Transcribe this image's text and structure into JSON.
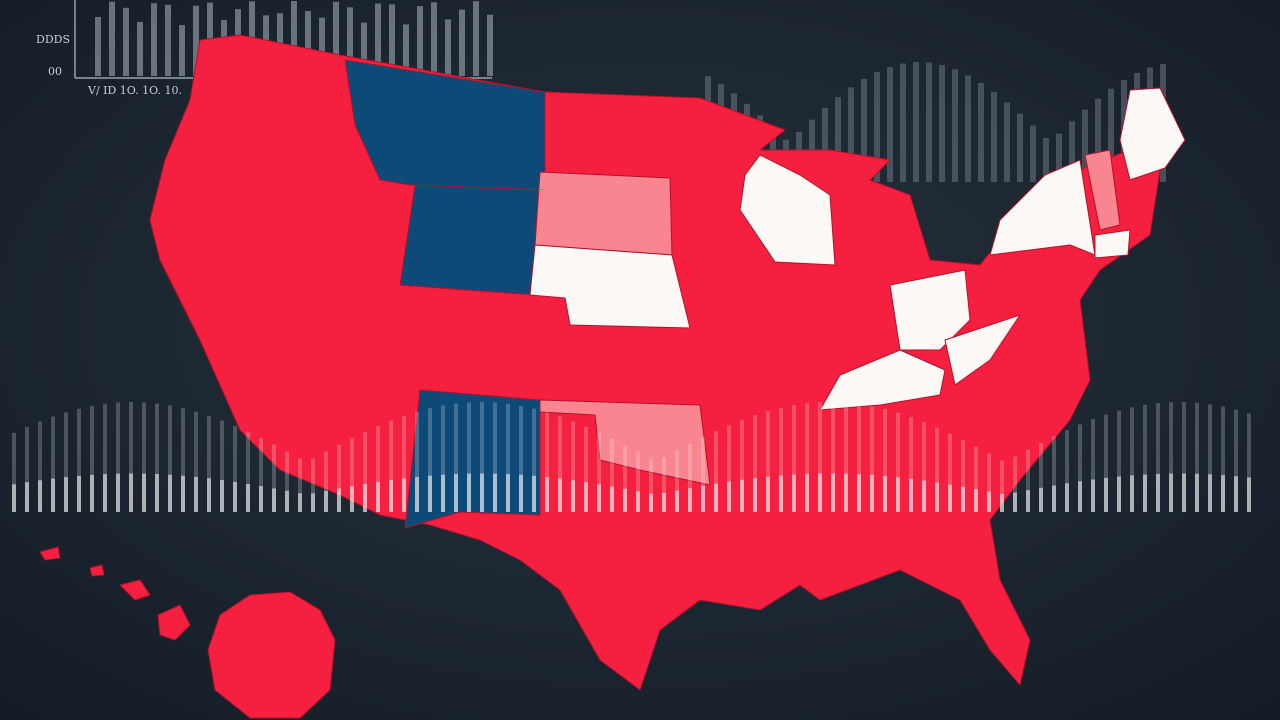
{
  "top_chart": {
    "y_labels": [
      "DDDS",
      "00"
    ],
    "x_label": "V/ ID 1O. 1O. 10."
  }
}
